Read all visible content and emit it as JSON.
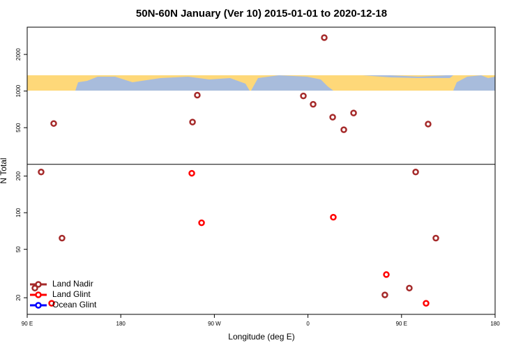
{
  "chart_data": {
    "type": "scatter",
    "title": "50N-60N January (Ver 10)   2015-01-01 to 2020-12-18",
    "x_label": "Longitude (deg E)",
    "y_label": "N Total",
    "log_y": true,
    "xlim": [
      90,
      540
    ],
    "ylim": [
      14.6,
      3350
    ],
    "xticks": [
      {
        "value": 90,
        "label": "90 E"
      },
      180,
      {
        "value": 270,
        "label": "90 W"
      },
      {
        "value": 360,
        "label": "0"
      },
      {
        "value": 450,
        "label": "90 E"
      },
      {
        "value": 540,
        "label": "180"
      }
    ],
    "yticks": [
      20,
      50,
      100,
      200,
      500,
      1000,
      2000
    ],
    "hline": 250,
    "legend": "bottom-left",
    "series": [
      {
        "name": "Land Nadir",
        "color": "#a52a2a",
        "x": [
          375.7,
          253.6,
          115.5,
          249,
          355.6,
          365,
          383.8,
          403.9,
          394.5,
          475.6,
          103.4,
          463.6,
          123.5,
          483,
          457.5,
          434,
          97.4
        ],
        "values": [
          2750,
          925,
          541,
          556,
          912,
          778,
          610,
          660,
          481,
          535,
          216,
          216,
          61.8,
          61.8,
          24,
          21.1,
          24
        ]
      },
      {
        "name": "Land Glint",
        "color": "#ff0000",
        "x": [
          248.3,
          257.7,
          384.4,
          435.4,
          473.6,
          113.5
        ],
        "values": [
          211,
          82.6,
          91.8,
          31,
          18,
          18
        ]
      },
      {
        "name": "Ocean Glint",
        "color": "#0000ff",
        "x": [],
        "values": []
      }
    ]
  }
}
